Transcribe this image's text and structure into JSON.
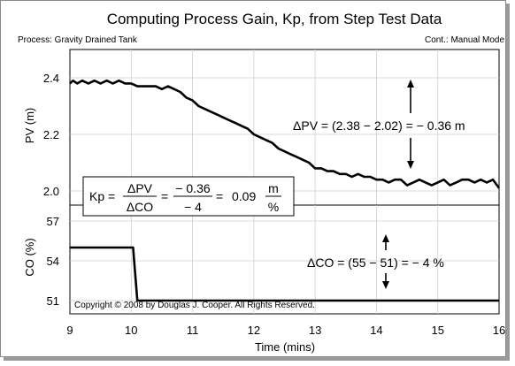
{
  "title": "Computing Process Gain, Kp, from Step Test Data",
  "process_label": "Process: Gravity Drained Tank",
  "controller_label": "Cont.: Manual Mode",
  "copyright": "Copyright © 2008 by Douglas J. Cooper. All Rights Reserved.",
  "annotations": {
    "pv_delta": "ΔPV = (2.38 − 2.02) = − 0.36 m",
    "co_delta": "ΔCO = (55 − 51) = − 4 %",
    "kp": {
      "lhs": "Kp =",
      "num1": "ΔPV",
      "den1": "ΔCO",
      "eq1": "=",
      "num2": "− 0.36",
      "den2": "− 4",
      "eq2": "=",
      "value": "0.09",
      "unit_num": "m",
      "unit_den": "%"
    }
  },
  "chart_data": [
    {
      "type": "line",
      "name": "pv",
      "xlabel": "",
      "ylabel": "PV (m)",
      "xlim": [
        9,
        16
      ],
      "ylim": [
        1.95,
        2.5
      ],
      "yticks": [
        "2.4",
        "2.2",
        "2.0"
      ],
      "ytick_values": [
        2.4,
        2.2,
        2.0
      ],
      "series": [
        {
          "x": [
            9.0,
            9.05,
            9.12,
            9.2,
            9.3,
            9.4,
            9.5,
            9.6,
            9.7,
            9.8,
            9.9,
            10.0,
            10.1,
            10.2,
            10.3,
            10.4,
            10.5,
            10.6,
            10.7,
            10.8,
            10.9,
            11.0,
            11.1,
            11.2,
            11.3,
            11.4,
            11.5,
            11.6,
            11.7,
            11.8,
            11.9,
            12.0,
            12.1,
            12.2,
            12.3,
            12.4,
            12.5,
            12.6,
            12.7,
            12.8,
            12.9,
            13.0,
            13.1,
            13.2,
            13.3,
            13.4,
            13.5,
            13.6,
            13.7,
            13.8,
            13.9,
            14.0,
            14.1,
            14.2,
            14.3,
            14.4,
            14.5,
            14.6,
            14.7,
            14.8,
            14.9,
            15.0,
            15.1,
            15.2,
            15.3,
            15.4,
            15.5,
            15.6,
            15.7,
            15.8,
            15.9,
            16.0
          ],
          "y": [
            2.38,
            2.39,
            2.38,
            2.39,
            2.38,
            2.39,
            2.38,
            2.39,
            2.38,
            2.39,
            2.38,
            2.38,
            2.37,
            2.37,
            2.37,
            2.37,
            2.36,
            2.37,
            2.36,
            2.35,
            2.33,
            2.32,
            2.3,
            2.29,
            2.28,
            2.27,
            2.26,
            2.25,
            2.24,
            2.23,
            2.22,
            2.2,
            2.19,
            2.18,
            2.17,
            2.15,
            2.14,
            2.13,
            2.12,
            2.11,
            2.1,
            2.08,
            2.08,
            2.07,
            2.07,
            2.06,
            2.06,
            2.05,
            2.06,
            2.05,
            2.05,
            2.04,
            2.04,
            2.03,
            2.04,
            2.04,
            2.02,
            2.03,
            2.04,
            2.03,
            2.02,
            2.03,
            2.04,
            2.02,
            2.03,
            2.04,
            2.04,
            2.03,
            2.04,
            2.03,
            2.04,
            2.01
          ]
        }
      ]
    },
    {
      "type": "line",
      "name": "co",
      "xlabel": "Time (mins)",
      "ylabel": "CO (%)",
      "xlim": [
        9,
        16
      ],
      "ylim": [
        50,
        58.2
      ],
      "xticks": [
        "9",
        "10",
        "11",
        "12",
        "13",
        "14",
        "15",
        "16"
      ],
      "xtick_values": [
        9,
        10,
        11,
        12,
        13,
        14,
        15,
        16
      ],
      "yticks": [
        "57",
        "54",
        "51"
      ],
      "ytick_values": [
        57,
        54,
        51
      ],
      "series": [
        {
          "x": [
            9.0,
            10.03,
            10.1,
            16.0
          ],
          "y": [
            55,
            55,
            51,
            51
          ]
        }
      ]
    }
  ]
}
